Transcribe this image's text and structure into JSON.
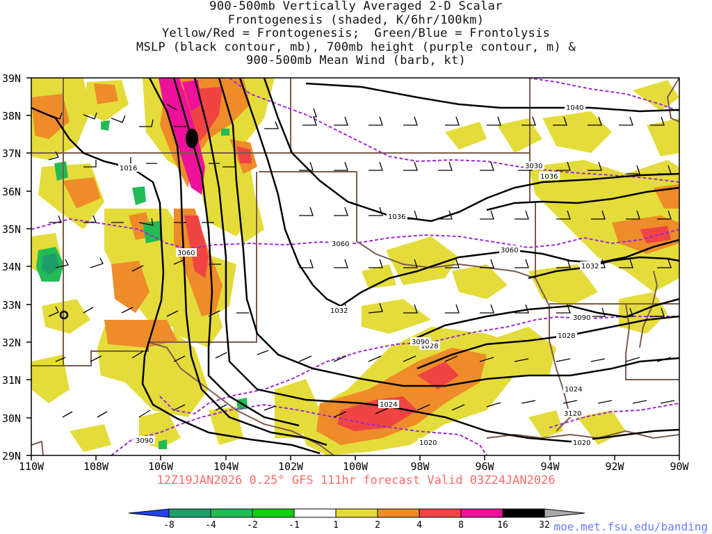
{
  "title": {
    "lines": [
      "900-500mb Vertically Averaged 2-D Scalar",
      "Frontogenesis (shaded, K/6hr/100km)",
      "Yellow/Red = Frontogenesis;  Green/Blue = Frontolysis",
      "MSLP (black contour, mb), 700mb height (purple contour, m) &",
      "900-500mb Mean Wind (barb, kt)"
    ]
  },
  "map": {
    "lat_labels": [
      "39N",
      "38N",
      "37N",
      "36N",
      "35N",
      "34N",
      "33N",
      "32N",
      "31N",
      "30N",
      "29N"
    ],
    "lon_labels": [
      "110W",
      "108W",
      "106W",
      "104W",
      "102W",
      "100W",
      "98W",
      "96W",
      "94W",
      "92W",
      "90W"
    ],
    "lon_range": [
      -110,
      -90
    ],
    "lat_range": [
      29,
      39
    ],
    "mslp_labels": [
      "1040",
      "1036",
      "1036",
      "1032",
      "1032",
      "1028",
      "1028",
      "1024",
      "1024",
      "1020",
      "1020",
      "1016"
    ],
    "height_labels": [
      "3030",
      "3060",
      "3060",
      "3060",
      "3090",
      "3090",
      "3120",
      "3090"
    ]
  },
  "footer": "12Z19JAN2026 0.25° GFS 111hr forecast Valid 03Z24JAN2026",
  "colorbar": {
    "labels": [
      "-8",
      "-4",
      "-2",
      "-1",
      "1",
      "2",
      "4",
      "8",
      "16",
      "32"
    ],
    "colors": [
      "#2244ee",
      "#1e9e6a",
      "#22bb55",
      "#11cc11",
      "#ffffff",
      "#e4dc3a",
      "#ee8c2a",
      "#f04444",
      "#ee1199",
      "#000000",
      "#aaaaaa"
    ]
  },
  "credit": "moe.met.fsu.edu/banding"
}
